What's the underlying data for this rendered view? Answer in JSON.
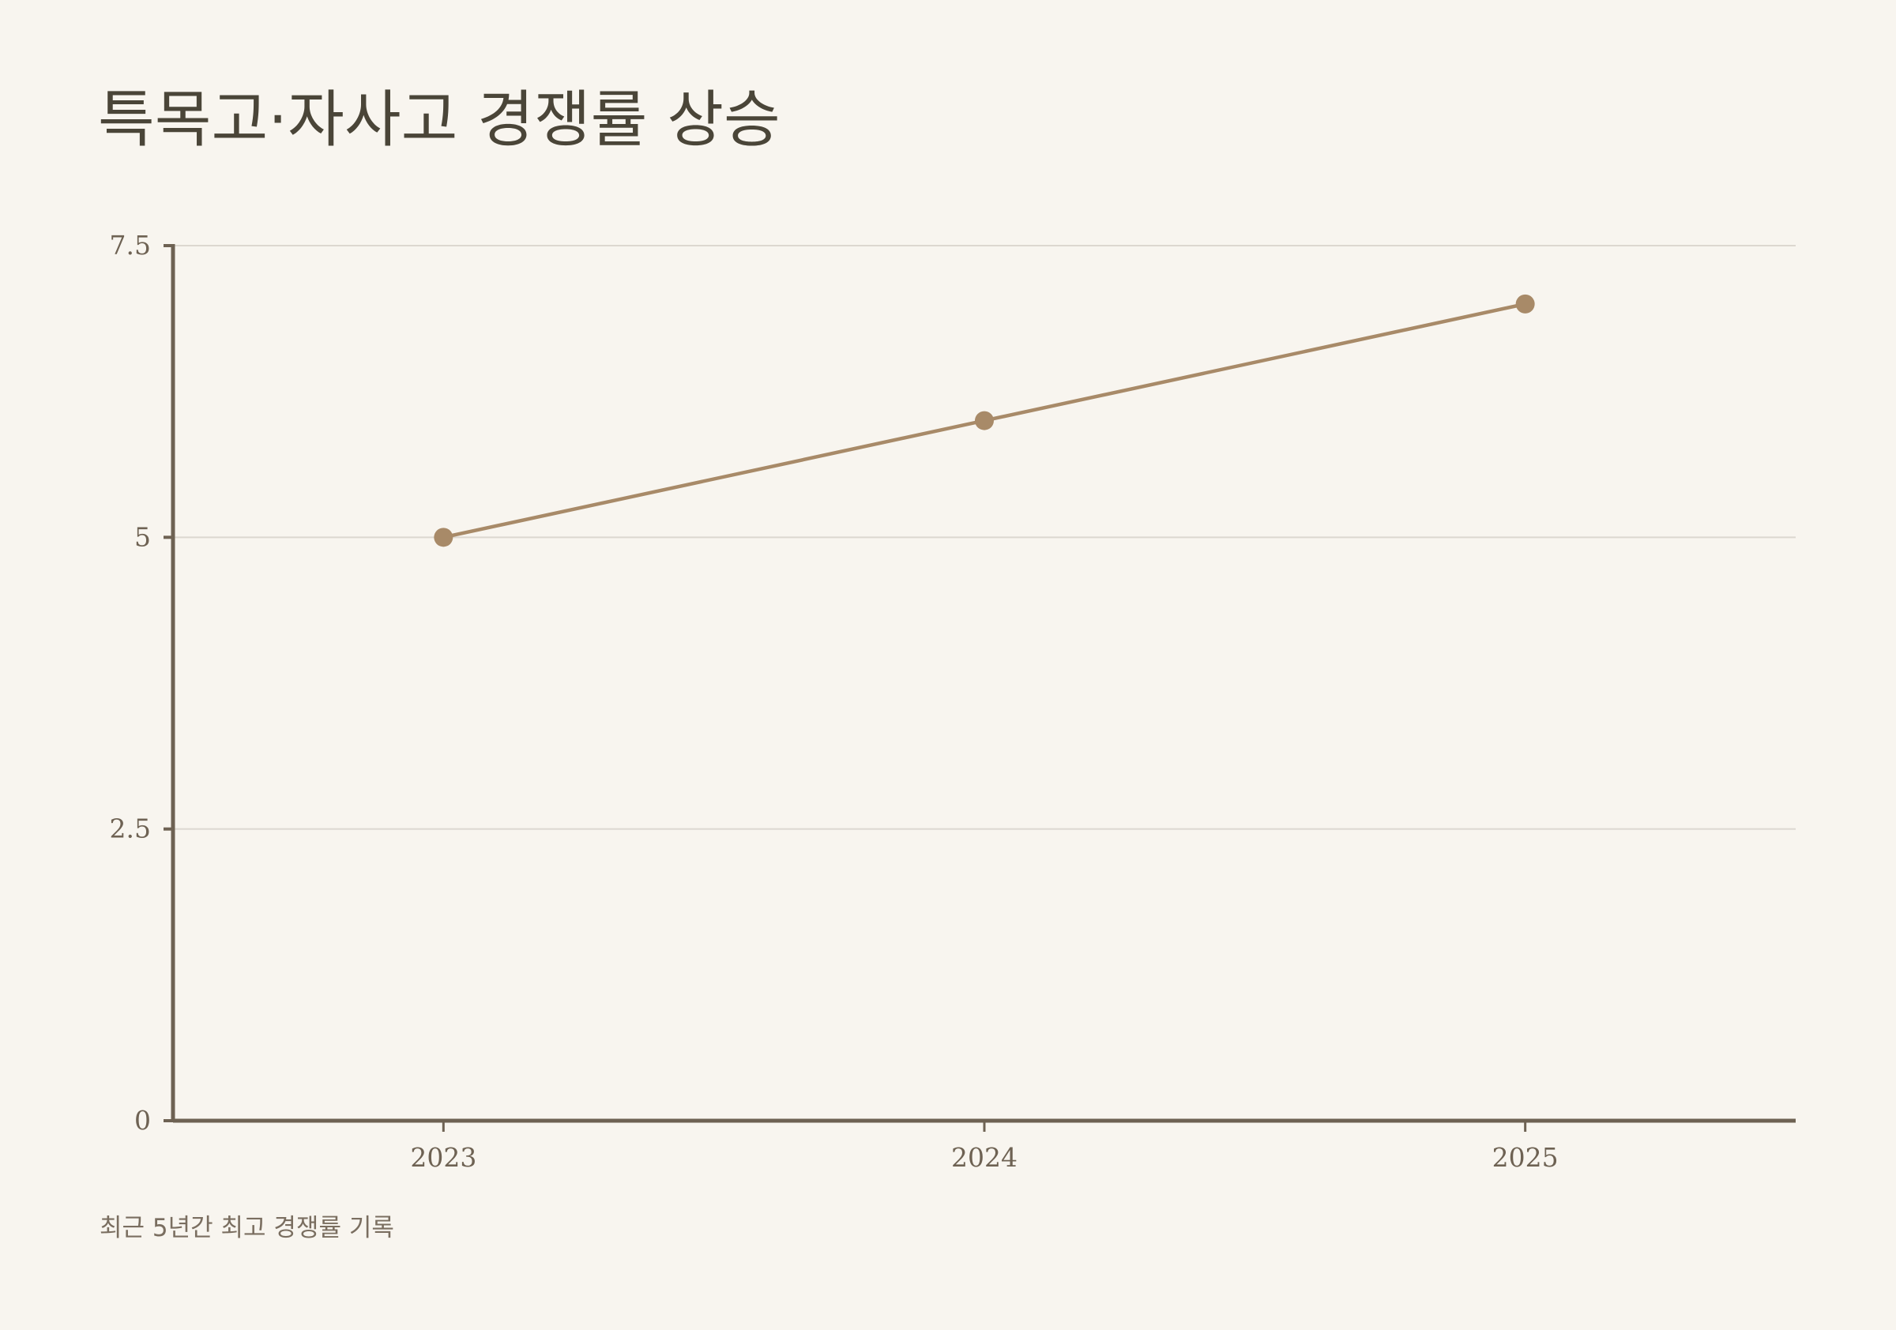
{
  "chart_data": {
    "type": "line",
    "title": "특목고·자사고 경쟁률 상승",
    "categories": [
      "2023",
      "2024",
      "2025"
    ],
    "values": [
      5,
      6,
      7
    ],
    "color": "#a88a68",
    "ylim": [
      0,
      7.5
    ],
    "yticks": [
      0,
      2.5,
      5,
      7.5
    ],
    "grid": true,
    "note": "최근 5년간 최고 경쟁률 기록"
  }
}
